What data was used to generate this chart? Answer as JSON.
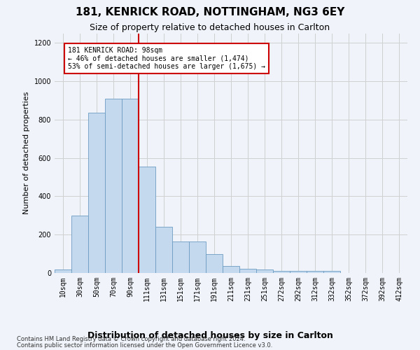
{
  "title": "181, KENRICK ROAD, NOTTINGHAM, NG3 6EY",
  "subtitle": "Size of property relative to detached houses in Carlton",
  "xlabel": "Distribution of detached houses by size in Carlton",
  "ylabel": "Number of detached properties",
  "categories": [
    "10sqm",
    "30sqm",
    "50sqm",
    "70sqm",
    "90sqm",
    "111sqm",
    "131sqm",
    "151sqm",
    "171sqm",
    "191sqm",
    "211sqm",
    "231sqm",
    "251sqm",
    "272sqm",
    "292sqm",
    "312sqm",
    "332sqm",
    "352sqm",
    "372sqm",
    "392sqm",
    "412sqm"
  ],
  "values": [
    20,
    300,
    835,
    910,
    910,
    555,
    240,
    165,
    165,
    100,
    35,
    22,
    20,
    10,
    10,
    10,
    10,
    0,
    0,
    0,
    0
  ],
  "bar_color": "#c5d9ee",
  "bar_edge_color": "#6b9dc2",
  "vline_color": "#cc0000",
  "annotation_text": "181 KENRICK ROAD: 98sqm\n← 46% of detached houses are smaller (1,474)\n53% of semi-detached houses are larger (1,675) →",
  "annotation_box_color": "#ffffff",
  "annotation_box_edge": "#cc0000",
  "ylim": [
    0,
    1250
  ],
  "yticks": [
    0,
    200,
    400,
    600,
    800,
    1000,
    1200
  ],
  "grid_color": "#d0d0d0",
  "footer_line1": "Contains HM Land Registry data © Crown copyright and database right 2024.",
  "footer_line2": "Contains public sector information licensed under the Open Government Licence v3.0.",
  "background_color": "#f0f4fa",
  "title_fontsize": 11,
  "subtitle_fontsize": 9,
  "axis_label_fontsize": 8,
  "tick_fontsize": 7,
  "footer_fontsize": 6
}
